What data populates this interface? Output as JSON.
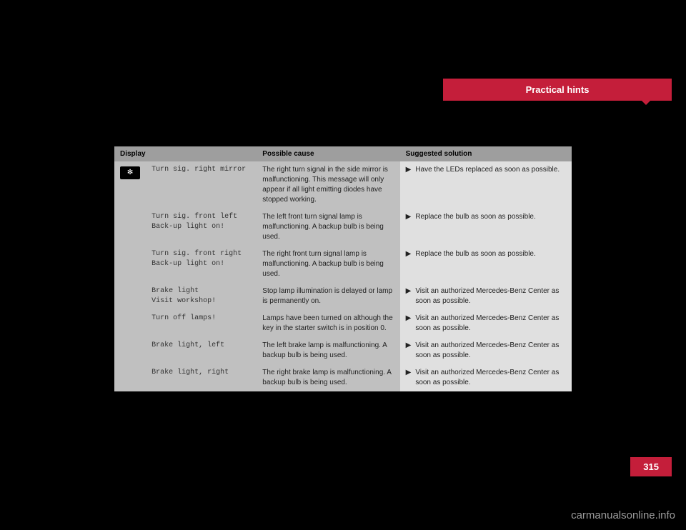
{
  "header": {
    "section_title": "Practical hints",
    "page_number": "315"
  },
  "table": {
    "headers": {
      "display": "Display",
      "cause": "Possible cause",
      "solution": "Suggested solution"
    },
    "icon_glyph": "✻",
    "rows": [
      {
        "display": "Turn sig. right mirror",
        "cause": "The right turn signal in the side mirror is malfunctioning. This message will only appear if all light emitting diodes have stopped working.",
        "solution": "Have the LEDs replaced as soon as possible."
      },
      {
        "display": "Turn sig. front left\nBack-up light on!",
        "cause": "The left front turn signal lamp is malfunctioning. A backup bulb is being used.",
        "solution": "Replace the bulb as soon as possible."
      },
      {
        "display": "Turn sig. front right\nBack-up light on!",
        "cause": "The right front turn signal lamp is malfunctioning. A backup bulb is being used.",
        "solution": "Replace the bulb as soon as possible."
      },
      {
        "display": "Brake light\nVisit workshop!",
        "cause": "Stop lamp illumination is delayed or lamp is permanently on.",
        "solution": "Visit an authorized Mercedes-Benz Center as soon as possible."
      },
      {
        "display": "Turn off lamps!",
        "cause": "Lamps have been turned on although the key in the starter switch is in position 0.",
        "solution": "Visit an authorized Mercedes-Benz Center as soon as possible."
      },
      {
        "display": "Brake light, left",
        "cause": "The left brake lamp is malfunctioning. A backup bulb is being used.",
        "solution": "Visit an authorized Mercedes-Benz Center as soon as possible."
      },
      {
        "display": "Brake light, right",
        "cause": "The right brake lamp is malfunctioning. A backup bulb is being used.",
        "solution": "Visit an authorized Mercedes-Benz Center as soon as possible."
      }
    ]
  },
  "watermark": "carmanualsonline.info",
  "colors": {
    "red": "#c41e3a",
    "table_header_bg": "#9e9e9e",
    "col_left_bg": "#c0c0c0",
    "col_right_bg": "#e0e0e0",
    "page_bg": "#000000"
  }
}
